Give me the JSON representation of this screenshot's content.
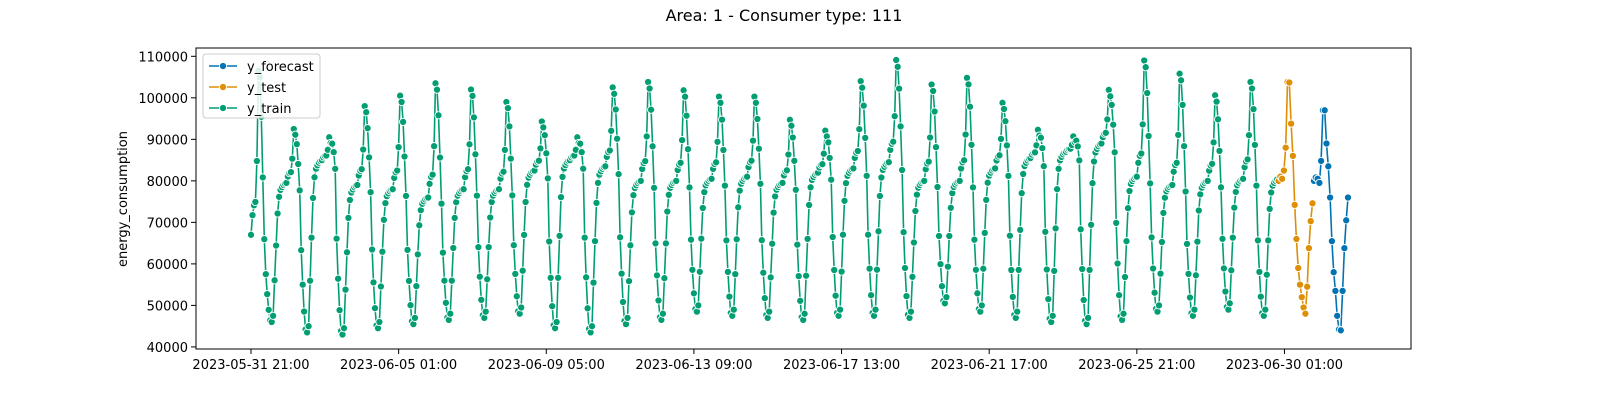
{
  "chart_data": {
    "type": "line",
    "title": "Area: 1 - Consumer type: 111",
    "xlabel": "",
    "ylabel": "energy_consumption",
    "x_ticks": [
      "2023-05-31 21:00",
      "2023-06-05 01:00",
      "2023-06-09 05:00",
      "2023-06-13 09:00",
      "2023-06-17 13:00",
      "2023-06-21 17:00",
      "2023-06-25 21:00",
      "2023-06-30 01:00"
    ],
    "y_ticks": [
      "40000",
      "50000",
      "60000",
      "70000",
      "80000",
      "90000",
      "100000",
      "110000"
    ],
    "ylim": [
      39500,
      112000
    ],
    "legend_position": "top-left",
    "grid": false,
    "series": [
      {
        "name": "y_forecast",
        "color": "#0173b2",
        "x_range": [
          "2023-06-30 21:00",
          "2023-07-01 20:00"
        ],
        "values": [
          80000,
          80800,
          80500,
          79500,
          84800,
          97000,
          97000,
          89000,
          83500,
          76000,
          65500,
          58000,
          53500,
          47500,
          44200,
          44000,
          53500,
          63800,
          70500,
          76000
        ]
      },
      {
        "name": "y_test",
        "color": "#de8f05",
        "x_range": [
          "2023-06-29 21:00",
          "2023-06-30 20:00"
        ],
        "values": [
          80000,
          81000,
          80500,
          82500,
          88000,
          103800,
          103700,
          93800,
          86000,
          74200,
          66000,
          59000,
          55000,
          52000,
          49500,
          48000,
          54500,
          63800,
          70300,
          74600
        ]
      },
      {
        "name": "y_train",
        "color": "#029e73",
        "x_range": [
          "2023-05-31 21:00",
          "2023-06-29 20:00"
        ],
        "peaks": [
          106500,
          92500,
          90500,
          98000,
          100500,
          103500,
          102000,
          99000,
          94300,
          90500,
          102500,
          103800,
          101800,
          100300,
          100300,
          94700,
          92100,
          104000,
          109100,
          103200,
          104800,
          98800,
          92300,
          90700,
          101900,
          109000,
          105800,
          100600,
          103800
        ],
        "troughs": [
          46000,
          43500,
          43000,
          44500,
          45500,
          46500,
          47000,
          48000,
          44500,
          43500,
          45500,
          46500,
          48500,
          47500,
          47000,
          46500,
          47500,
          47500,
          47000,
          50500,
          48500,
          47000,
          46000,
          45500,
          46500,
          48500,
          47500,
          49000,
          47500
        ],
        "starts": [
          67000,
          79500,
          85000,
          79000,
          78000,
          76000,
          78000,
          78000,
          82500,
          85000,
          83500,
          80000,
          80000,
          80500,
          81000,
          79500,
          82000,
          83000,
          84500,
          80000,
          80000,
          83000,
          85500,
          87000,
          89000,
          81000,
          79000,
          80000,
          80500
        ]
      }
    ]
  }
}
